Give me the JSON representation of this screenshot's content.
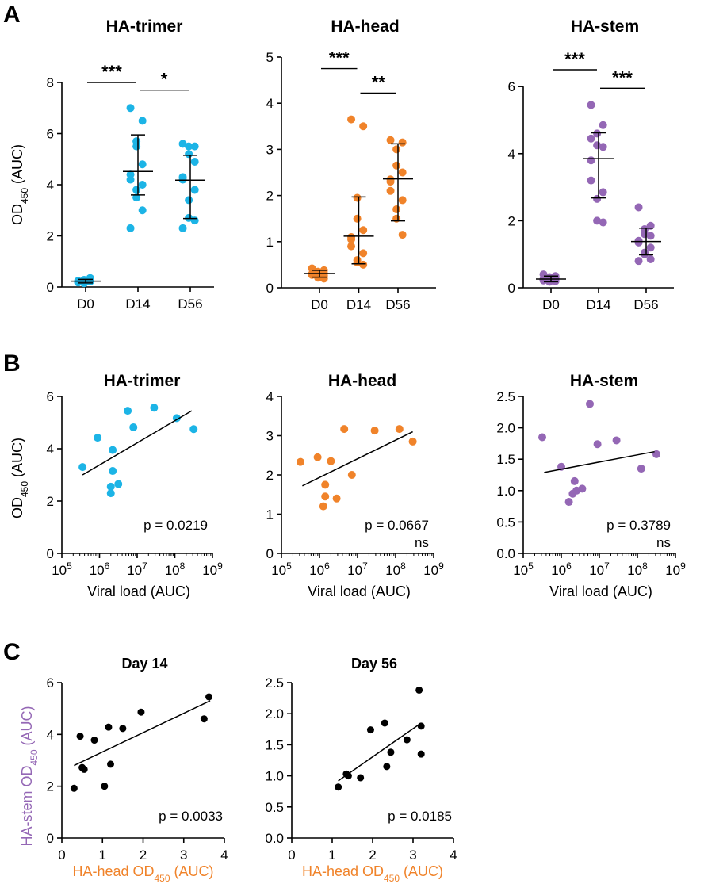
{
  "panel_labels": [
    "A",
    "B",
    "C"
  ],
  "colors": {
    "trimer": "#1CB4E6",
    "head": "#F0832A",
    "stem": "#9467B5",
    "black": "#000000",
    "head_axis_label": "#F0832A",
    "stem_axis_label": "#9467B5"
  },
  "chart_data": [
    {
      "id": "A1",
      "type": "scatter",
      "title": "HA-trimer",
      "ylabel_main": "OD",
      "ylabel_sub": "450",
      "ylabel_tail": " (AUC)",
      "categories": [
        "D0",
        "D14",
        "D56"
      ],
      "ylim": [
        0,
        8
      ],
      "yticks": [
        0,
        2,
        4,
        6,
        8
      ],
      "points": [
        [
          0.18,
          0.22,
          0.25,
          0.28,
          0.3,
          0.2,
          0.24,
          0.35,
          0.15,
          0.26,
          0.22,
          0.19
        ],
        [
          7.0,
          6.5,
          5.7,
          5.5,
          4.8,
          4.4,
          4.2,
          4.0,
          3.8,
          3.5,
          3.0,
          2.3
        ],
        [
          5.6,
          5.5,
          5.5,
          5.2,
          4.9,
          4.3,
          4.2,
          3.8,
          3.4,
          2.7,
          2.6,
          2.3
        ]
      ],
      "mean": [
        0.23,
        4.52,
        4.18
      ],
      "err_hi": [
        0.3,
        5.95,
        5.15
      ],
      "err_lo": [
        0.16,
        3.6,
        2.68
      ],
      "brackets": [
        {
          "from": 0,
          "to": 1,
          "y": 8.0,
          "label": "***"
        },
        {
          "from": 1,
          "to": 2,
          "y": 7.7,
          "label": "*"
        }
      ]
    },
    {
      "id": "A2",
      "type": "scatter",
      "title": "HA-head",
      "categories": [
        "D0",
        "D14",
        "D56"
      ],
      "ylim": [
        0,
        5
      ],
      "yticks": [
        0,
        1,
        2,
        3,
        4,
        5
      ],
      "points": [
        [
          0.42,
          0.38,
          0.35,
          0.33,
          0.31,
          0.3,
          0.28,
          0.26,
          0.25,
          0.22,
          0.2,
          0.3
        ],
        [
          3.65,
          3.5,
          1.95,
          1.5,
          1.25,
          1.1,
          0.9,
          0.75,
          0.6,
          0.55,
          0.5,
          1.05
        ],
        [
          3.2,
          3.15,
          3.0,
          2.65,
          2.5,
          2.3,
          2.1,
          1.9,
          1.7,
          1.5,
          1.15,
          2.35
        ]
      ],
      "mean": [
        0.31,
        1.12,
        2.36
      ],
      "err_hi": [
        0.38,
        1.97,
        3.12
      ],
      "err_lo": [
        0.23,
        0.52,
        1.45
      ],
      "brackets": [
        {
          "from": 0,
          "to": 1,
          "y": 4.75,
          "label": "***"
        },
        {
          "from": 1,
          "to": 2,
          "y": 4.22,
          "label": "**"
        }
      ]
    },
    {
      "id": "A3",
      "type": "scatter",
      "title": "HA-stem",
      "categories": [
        "D0",
        "D14",
        "D56"
      ],
      "ylim": [
        0,
        6.5
      ],
      "yticks": [
        0,
        2,
        4,
        6
      ],
      "points": [
        [
          0.4,
          0.35,
          0.32,
          0.3,
          0.28,
          0.25,
          0.22,
          0.2,
          0.18,
          0.3,
          0.26,
          0.24
        ],
        [
          5.45,
          4.85,
          4.6,
          4.25,
          4.2,
          3.8,
          3.2,
          2.85,
          2.65,
          2.0,
          1.95,
          4.45
        ],
        [
          2.4,
          1.85,
          1.75,
          1.6,
          1.55,
          1.4,
          1.35,
          1.2,
          1.05,
          1.0,
          0.85,
          0.8
        ]
      ],
      "mean": [
        0.26,
        3.85,
        1.38
      ],
      "err_hi": [
        0.35,
        4.62,
        1.78
      ],
      "err_lo": [
        0.18,
        2.68,
        0.98
      ],
      "brackets": [
        {
          "from": 0,
          "to": 1,
          "y": 6.5,
          "label": "***"
        },
        {
          "from": 1,
          "to": 2,
          "y": 5.95,
          "label": "***"
        }
      ]
    },
    {
      "id": "B1",
      "type": "scatter",
      "title": "HA-trimer",
      "ylabel_main": "OD",
      "ylabel_sub": "450",
      "ylabel_tail": " (AUC)",
      "xlabel": "Viral load (AUC)",
      "xscale": "log10",
      "xlim": [
        5,
        9
      ],
      "xticks": [
        5,
        6,
        7,
        8,
        9
      ],
      "ylim": [
        0,
        6
      ],
      "yticks": [
        0,
        2,
        4,
        6
      ],
      "points": [
        [
          5.55,
          3.3
        ],
        [
          5.95,
          4.42
        ],
        [
          6.3,
          2.3
        ],
        [
          6.3,
          2.55
        ],
        [
          6.35,
          3.95
        ],
        [
          6.35,
          3.15
        ],
        [
          6.5,
          2.65
        ],
        [
          6.75,
          5.45
        ],
        [
          6.9,
          4.82
        ],
        [
          7.45,
          5.57
        ],
        [
          8.05,
          5.17
        ],
        [
          8.5,
          4.75
        ]
      ],
      "fit": [
        [
          5.55,
          3.0
        ],
        [
          8.45,
          5.45
        ]
      ],
      "pvalue": "p = 0.0219",
      "significance": ""
    },
    {
      "id": "B2",
      "type": "scatter",
      "title": "HA-head",
      "xlabel": "Viral load (AUC)",
      "xscale": "log10",
      "xlim": [
        5,
        9
      ],
      "xticks": [
        5,
        6,
        7,
        8,
        9
      ],
      "ylim": [
        0,
        4
      ],
      "yticks": [
        0,
        1,
        2,
        3,
        4
      ],
      "points": [
        [
          5.5,
          2.33
        ],
        [
          5.95,
          2.45
        ],
        [
          6.1,
          1.2
        ],
        [
          6.15,
          1.75
        ],
        [
          6.15,
          1.45
        ],
        [
          6.3,
          2.35
        ],
        [
          6.45,
          1.4
        ],
        [
          6.65,
          3.17
        ],
        [
          6.85,
          2.0
        ],
        [
          7.45,
          3.13
        ],
        [
          8.1,
          3.17
        ],
        [
          8.45,
          2.85
        ]
      ],
      "fit": [
        [
          5.55,
          1.72
        ],
        [
          8.45,
          3.1
        ]
      ],
      "pvalue": "p = 0.0667",
      "significance": "ns"
    },
    {
      "id": "B3",
      "type": "scatter",
      "title": "HA-stem",
      "xlabel": "Viral load (AUC)",
      "xscale": "log10",
      "xlim": [
        5,
        9
      ],
      "xticks": [
        5,
        6,
        7,
        8,
        9
      ],
      "ylim": [
        0,
        2.5
      ],
      "yticks": [
        0.0,
        0.5,
        1.0,
        1.5,
        2.0,
        2.5
      ],
      "points": [
        [
          5.5,
          1.85
        ],
        [
          6.0,
          1.38
        ],
        [
          6.2,
          0.82
        ],
        [
          6.3,
          0.95
        ],
        [
          6.35,
          1.15
        ],
        [
          6.4,
          1.0
        ],
        [
          6.55,
          1.03
        ],
        [
          6.75,
          2.38
        ],
        [
          6.95,
          1.74
        ],
        [
          7.45,
          1.8
        ],
        [
          8.1,
          1.35
        ],
        [
          8.5,
          1.58
        ]
      ],
      "fit": [
        [
          5.55,
          1.29
        ],
        [
          8.45,
          1.62
        ]
      ],
      "pvalue": "p = 0.3789",
      "significance": "ns"
    },
    {
      "id": "C1",
      "type": "scatter",
      "title": "Day 14",
      "ylabel": "HA-stem OD450 (AUC)",
      "ylabel_main": "HA-stem OD",
      "ylabel_sub": "450",
      "ylabel_tail": " (AUC)",
      "xlabel_main": "HA-head OD",
      "xlabel_sub": "450",
      "xlabel_tail": " (AUC)",
      "xlim": [
        0,
        4
      ],
      "xticks": [
        0,
        1,
        2,
        3,
        4
      ],
      "ylim": [
        0,
        6
      ],
      "yticks": [
        0,
        2,
        4,
        6
      ],
      "points": [
        [
          0.3,
          1.92
        ],
        [
          0.45,
          3.93
        ],
        [
          0.5,
          2.72
        ],
        [
          0.55,
          2.65
        ],
        [
          0.8,
          3.78
        ],
        [
          1.05,
          2.0
        ],
        [
          1.15,
          4.28
        ],
        [
          1.2,
          2.85
        ],
        [
          1.5,
          4.23
        ],
        [
          1.95,
          4.86
        ],
        [
          3.5,
          4.6
        ],
        [
          3.62,
          5.45
        ]
      ],
      "fit": [
        [
          0.3,
          2.8
        ],
        [
          3.65,
          5.3
        ]
      ],
      "pvalue": "p = 0.0033"
    },
    {
      "id": "C2",
      "type": "scatter",
      "title": "Day 56",
      "xlabel_main": "HA-head OD",
      "xlabel_sub": "450",
      "xlabel_tail": " (AUC)",
      "xlim": [
        0,
        4
      ],
      "xticks": [
        0,
        1,
        2,
        3,
        4
      ],
      "ylim": [
        0,
        2.5
      ],
      "yticks": [
        0.0,
        0.5,
        1.0,
        1.5,
        2.0,
        2.5
      ],
      "points": [
        [
          1.15,
          0.82
        ],
        [
          1.35,
          1.03
        ],
        [
          1.4,
          1.0
        ],
        [
          1.7,
          0.97
        ],
        [
          1.95,
          1.74
        ],
        [
          2.3,
          1.85
        ],
        [
          2.35,
          1.15
        ],
        [
          2.45,
          1.38
        ],
        [
          2.85,
          1.58
        ],
        [
          3.15,
          2.38
        ],
        [
          3.2,
          1.8
        ],
        [
          3.2,
          1.35
        ]
      ],
      "fit": [
        [
          1.15,
          0.92
        ],
        [
          3.2,
          1.85
        ]
      ],
      "pvalue": "p = 0.0185"
    }
  ]
}
